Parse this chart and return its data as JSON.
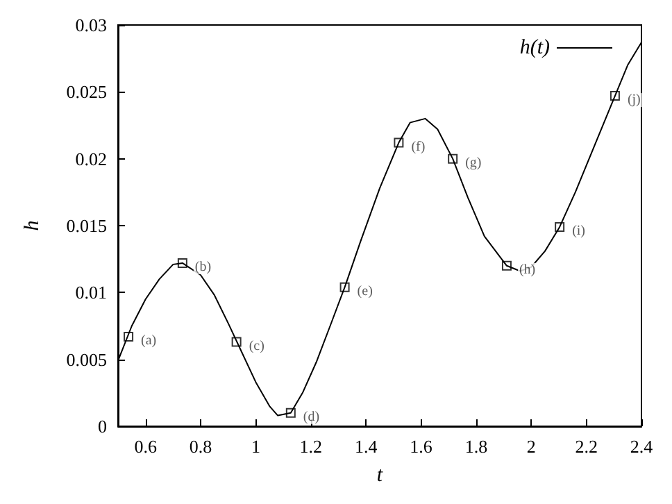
{
  "chart_data": {
    "type": "line",
    "xlabel": "t",
    "ylabel": "h",
    "xlim": [
      0.5,
      2.4
    ],
    "xticks": [
      0.6,
      0.8,
      1,
      1.2,
      1.4,
      1.6,
      1.8,
      2,
      2.2,
      2.4
    ],
    "ylim": [
      0,
      0.03
    ],
    "yticks": [
      0,
      0.005,
      0.01,
      0.015,
      0.02,
      0.025,
      0.03
    ],
    "grid": false,
    "legend": "top right",
    "series": [
      {
        "name": "h(t)",
        "color": "#000000",
        "marker": "none",
        "x": [
          0.5,
          0.55,
          0.6,
          0.65,
          0.7,
          0.734,
          0.8,
          0.85,
          0.9,
          0.95,
          1.0,
          1.05,
          1.08,
          1.127,
          1.17,
          1.22,
          1.27,
          1.323,
          1.38,
          1.45,
          1.519,
          1.56,
          1.615,
          1.66,
          1.715,
          1.77,
          1.83,
          1.911,
          1.96,
          2.0,
          2.05,
          2.103,
          2.16,
          2.23,
          2.304,
          2.35,
          2.4
        ],
        "values": [
          0.0049,
          0.0075,
          0.0095,
          0.011,
          0.0121,
          0.0122,
          0.0113,
          0.0098,
          0.0077,
          0.0055,
          0.0033,
          0.0015,
          0.0008,
          0.001,
          0.0025,
          0.0048,
          0.0075,
          0.0104,
          0.0138,
          0.0178,
          0.0212,
          0.0227,
          0.023,
          0.0222,
          0.02,
          0.0171,
          0.0142,
          0.012,
          0.0116,
          0.0119,
          0.0131,
          0.0149,
          0.0175,
          0.021,
          0.0247,
          0.027,
          0.0287
        ]
      },
      {
        "type": "scatter",
        "color": "#000000",
        "marker": "square",
        "x": [
          0.538,
          0.734,
          0.93,
          1.127,
          1.323,
          1.519,
          1.715,
          1.911,
          2.103,
          2.304
        ],
        "values": [
          0.0067,
          0.0122,
          0.0063,
          0.001,
          0.0104,
          0.0212,
          0.02,
          0.012,
          0.0149,
          0.0247
        ]
      }
    ],
    "annotations": [
      {
        "text": "(a)",
        "x": 0.538,
        "y": 0.0067
      },
      {
        "text": "(b)",
        "x": 0.734,
        "y": 0.0122
      },
      {
        "text": "(c)",
        "x": 0.93,
        "y": 0.0063
      },
      {
        "text": "(d)",
        "x": 1.127,
        "y": 0.001
      },
      {
        "text": "(e)",
        "x": 1.323,
        "y": 0.0104
      },
      {
        "text": "(f)",
        "x": 1.519,
        "y": 0.0212
      },
      {
        "text": "(g)",
        "x": 1.715,
        "y": 0.02
      },
      {
        "text": "(h)",
        "x": 1.911,
        "y": 0.012
      },
      {
        "text": "(i)",
        "x": 2.103,
        "y": 0.0149
      },
      {
        "text": "(j)",
        "x": 2.304,
        "y": 0.0247
      }
    ]
  }
}
